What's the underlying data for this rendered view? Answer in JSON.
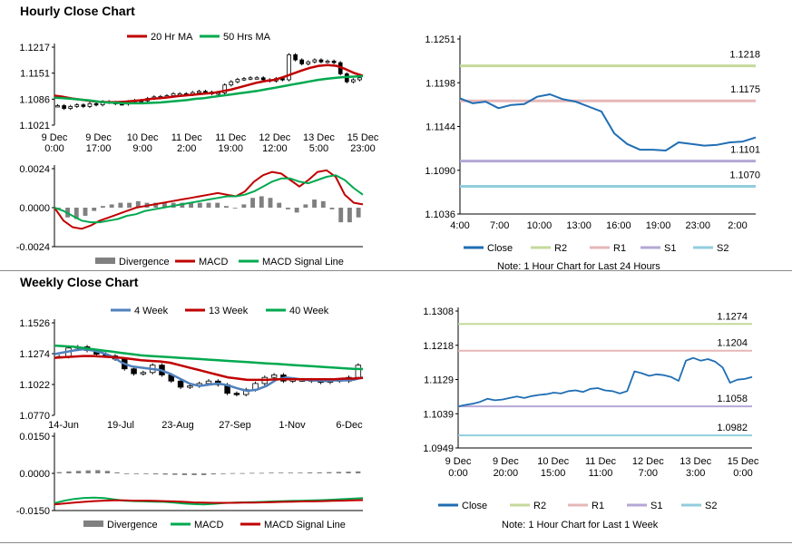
{
  "sections": {
    "hourly_title": "Hourly Close Chart",
    "weekly_title": "Weekly Close Chart"
  },
  "chart_data": [
    {
      "id": "hourly_price",
      "type": "candlestick",
      "legend": [
        "20 Hr MA",
        "50 Hrs MA"
      ],
      "colors": {
        "ma20": "#c00000",
        "ma50": "#00a94f"
      },
      "ylim": [
        1.1021,
        1.1217
      ],
      "yticks": [
        "1.1217",
        "1.1151",
        "1.1086",
        "1.1021"
      ],
      "xticks": [
        [
          "9 Dec",
          "0:00"
        ],
        [
          "9 Dec",
          "17:00"
        ],
        [
          "10 Dec",
          "9:00"
        ],
        [
          "11 Dec",
          "2:00"
        ],
        [
          "11 Dec",
          "19:00"
        ],
        [
          "12 Dec",
          "12:00"
        ],
        [
          "13 Dec",
          "5:00"
        ],
        [
          "15 Dec",
          "23:00"
        ]
      ],
      "close": [
        1.107,
        1.1063,
        1.1068,
        1.1072,
        1.1068,
        1.1075,
        1.1072,
        1.108,
        1.1078,
        1.1075,
        1.1074,
        1.108,
        1.1083,
        1.1082,
        1.1088,
        1.1092,
        1.1093,
        1.1095,
        1.11,
        1.11,
        1.1098,
        1.1103,
        1.1106,
        1.1104,
        1.11,
        1.1102,
        1.1122,
        1.113,
        1.1136,
        1.1138,
        1.114,
        1.114,
        1.1135,
        1.1132,
        1.1138,
        1.1135,
        1.1198,
        1.1185,
        1.1175,
        1.118,
        1.1185,
        1.118,
        1.1182,
        1.1178,
        1.115,
        1.113,
        1.1135,
        1.114
      ],
      "ma20": [
        1.1095,
        1.1092,
        1.1088,
        1.1085,
        1.1082,
        1.108,
        1.1079,
        1.1079,
        1.108,
        1.1082,
        1.1084,
        1.1087,
        1.1089,
        1.1091,
        1.1094,
        1.1096,
        1.1098,
        1.11,
        1.1102,
        1.1106,
        1.111,
        1.1116,
        1.1122,
        1.1128,
        1.1132,
        1.1135,
        1.1142,
        1.115,
        1.1158,
        1.1165,
        1.117,
        1.1172,
        1.117,
        1.1162,
        1.1152,
        1.1145
      ],
      "ma50": [
        1.109,
        1.1089,
        1.1087,
        1.1085,
        1.1083,
        1.108,
        1.1078,
        1.1077,
        1.1076,
        1.1076,
        1.1076,
        1.1077,
        1.1078,
        1.108,
        1.1082,
        1.1084,
        1.1087,
        1.1089,
        1.1092,
        1.1095,
        1.1098,
        1.1101,
        1.1104,
        1.1107,
        1.1111,
        1.1115,
        1.1119,
        1.1123,
        1.1127,
        1.1131,
        1.1135,
        1.1138,
        1.114,
        1.1142,
        1.1143,
        1.1144
      ]
    },
    {
      "id": "hourly_macd",
      "type": "line",
      "legend": [
        "Divergence",
        "MACD",
        "MACD Signal Line"
      ],
      "colors": {
        "div": "#808080",
        "macd": "#c00000",
        "signal": "#00a94f"
      },
      "ylim": [
        -0.0024,
        0.0024
      ],
      "yticks": [
        "0.0024",
        "0.0000",
        "-0.0024"
      ],
      "macd": [
        -0.0,
        -0.0008,
        -0.0012,
        -0.0013,
        -0.0011,
        -0.0008,
        -0.0006,
        -0.0004,
        -0.0002,
        0.0,
        0.0001,
        0.0002,
        0.0003,
        0.0004,
        0.0005,
        0.0006,
        0.0007,
        0.0008,
        0.0009,
        0.0008,
        0.0007,
        0.001,
        0.0016,
        0.002,
        0.0022,
        0.0021,
        0.0017,
        0.0013,
        0.0017,
        0.0022,
        0.0023,
        0.0019,
        0.0008,
        0.0003,
        0.0002
      ],
      "signal": [
        0.0,
        -0.0002,
        -0.0005,
        -0.0008,
        -0.0009,
        -0.0009,
        -0.0008,
        -0.0007,
        -0.0005,
        -0.0004,
        -0.0002,
        -0.0001,
        0.0,
        0.0001,
        0.0002,
        0.0003,
        0.0004,
        0.0005,
        0.0006,
        0.0007,
        0.0007,
        0.0008,
        0.001,
        0.0013,
        0.0016,
        0.0018,
        0.0018,
        0.0016,
        0.0015,
        0.0017,
        0.0019,
        0.002,
        0.0017,
        0.0012,
        0.0008
      ],
      "divergence": [
        -0.0,
        -0.0006,
        -0.0007,
        -0.0005,
        -0.0002,
        0.0001,
        0.0002,
        0.0003,
        0.0003,
        0.0004,
        0.0003,
        0.0003,
        0.0003,
        0.0003,
        0.0003,
        0.0003,
        0.0003,
        0.0003,
        0.0003,
        0.0001,
        0.0,
        0.0002,
        0.0006,
        0.0007,
        0.0006,
        0.0003,
        -0.0001,
        -0.0003,
        0.0002,
        0.0005,
        0.0004,
        -0.0001,
        -0.0009,
        -0.0009,
        -0.0006
      ]
    },
    {
      "id": "hourly_close",
      "type": "line",
      "legend": [
        "Close",
        "R2",
        "R1",
        "S1",
        "S2"
      ],
      "colors": {
        "close": "#1f6eb4",
        "r2": "#c5d99b",
        "r1": "#e6b7b7",
        "s1": "#b4a7d6",
        "s2": "#92cddc"
      },
      "ylim": [
        1.1036,
        1.1251
      ],
      "yticks": [
        "1.1251",
        "1.1198",
        "1.1144",
        "1.1090",
        "1.1036"
      ],
      "xticks": [
        "4:00",
        "7:00",
        "10:00",
        "13:00",
        "16:00",
        "19:00",
        "23:00",
        "2:00"
      ],
      "levels": {
        "R2": 1.1218,
        "R1": 1.1175,
        "S1": 1.1101,
        "S2": 1.107
      },
      "level_labels": {
        "R2": "1.1218",
        "R1": "1.1175",
        "S1": "1.1101",
        "S2": "1.1070"
      },
      "close": [
        1.1178,
        1.1172,
        1.1174,
        1.1166,
        1.117,
        1.1171,
        1.118,
        1.1183,
        1.1177,
        1.1174,
        1.1168,
        1.1162,
        1.1135,
        1.1122,
        1.1115,
        1.1115,
        1.1114,
        1.1124,
        1.1122,
        1.112,
        1.1121,
        1.1124,
        1.1125,
        1.113
      ],
      "note": "Note: 1 Hour Chart for Last 24 Hours"
    },
    {
      "id": "weekly_price",
      "type": "candlestick",
      "legend": [
        "4 Week",
        "13 Week",
        "40 Week"
      ],
      "colors": {
        "w4": "#4f81bd",
        "w13": "#c00000",
        "w40": "#00a94f"
      },
      "ylim": [
        1.077,
        1.1526
      ],
      "yticks": [
        "1.1526",
        "1.1274",
        "1.1022",
        "1.0770"
      ],
      "xticks": [
        "14-Jun",
        "19-Jul",
        "23-Aug",
        "27-Sep",
        "1-Nov",
        "6-Dec"
      ],
      "close": [
        1.125,
        1.132,
        1.133,
        1.13,
        1.127,
        1.1255,
        1.123,
        1.115,
        1.111,
        1.112,
        1.118,
        1.11,
        1.105,
        1.1,
        1.101,
        1.103,
        1.105,
        1.102,
        1.095,
        1.094,
        1.098,
        1.103,
        1.108,
        1.11,
        1.105,
        1.106,
        1.106,
        1.105,
        1.104,
        1.106,
        1.105,
        1.108,
        1.118
      ],
      "w4": [
        1.127,
        1.1285,
        1.13,
        1.131,
        1.13,
        1.128,
        1.125,
        1.12,
        1.117,
        1.116,
        1.115,
        1.114,
        1.111,
        1.107,
        1.103,
        1.101,
        1.102,
        1.103,
        1.1015,
        1.099,
        1.097,
        1.098,
        1.101,
        1.106,
        1.108,
        1.107,
        1.106,
        1.1055,
        1.105,
        1.1055,
        1.1055,
        1.106,
        1.108
      ],
      "w13": [
        1.124,
        1.1245,
        1.125,
        1.1255,
        1.1255,
        1.125,
        1.1245,
        1.124,
        1.123,
        1.122,
        1.1215,
        1.121,
        1.12,
        1.118,
        1.116,
        1.114,
        1.112,
        1.11,
        1.108,
        1.107,
        1.106,
        1.106,
        1.106,
        1.1065,
        1.1065,
        1.1065,
        1.1065,
        1.1065,
        1.1065,
        1.1065,
        1.107,
        1.107,
        1.1075
      ],
      "w40": [
        1.134,
        1.1335,
        1.133,
        1.132,
        1.131,
        1.13,
        1.129,
        1.128,
        1.127,
        1.126,
        1.1255,
        1.125,
        1.1245,
        1.124,
        1.1235,
        1.123,
        1.1225,
        1.122,
        1.1215,
        1.121,
        1.1205,
        1.12,
        1.1195,
        1.119,
        1.1185,
        1.118,
        1.1175,
        1.117,
        1.1165,
        1.116,
        1.1155,
        1.115,
        1.1148
      ]
    },
    {
      "id": "weekly_macd",
      "type": "line",
      "legend": [
        "Divergence",
        "MACD",
        "MACD Signal Line"
      ],
      "colors": {
        "div": "#808080",
        "macd": "#00a94f",
        "signal": "#c00000"
      },
      "ylim": [
        -0.015,
        0.015
      ],
      "yticks": [
        "0.0150",
        "0.0000",
        "-0.0150"
      ],
      "macd": [
        -0.012,
        -0.011,
        -0.0103,
        -0.0099,
        -0.0098,
        -0.01,
        -0.0105,
        -0.011,
        -0.0112,
        -0.0113,
        -0.0114,
        -0.0115,
        -0.0118,
        -0.0122,
        -0.0124,
        -0.0125,
        -0.0123,
        -0.012,
        -0.0118,
        -0.0117,
        -0.0116,
        -0.0115,
        -0.0113,
        -0.0112,
        -0.0111,
        -0.011,
        -0.0109,
        -0.0108,
        -0.0106,
        -0.0104,
        -0.0102,
        -0.01
      ],
      "signal": [
        -0.0125,
        -0.0122,
        -0.0118,
        -0.0115,
        -0.0112,
        -0.011,
        -0.0109,
        -0.0109,
        -0.011,
        -0.011,
        -0.0111,
        -0.0112,
        -0.0113,
        -0.0115,
        -0.0117,
        -0.0118,
        -0.0119,
        -0.0119,
        -0.0119,
        -0.0118,
        -0.0118,
        -0.0117,
        -0.0116,
        -0.0115,
        -0.0114,
        -0.0113,
        -0.0113,
        -0.0112,
        -0.0111,
        -0.011,
        -0.0109,
        -0.0108
      ],
      "divergence": [
        0.0005,
        0.0008,
        0.001,
        0.0012,
        0.0013,
        0.001,
        0.0004,
        -0.0001,
        -0.0002,
        -0.0003,
        -0.0004,
        -0.0005,
        -0.0006,
        -0.0007,
        -0.0007,
        -0.0007,
        -0.0004,
        -0.0001,
        0.0001,
        0.0001,
        0.0002,
        0.0002,
        0.0003,
        0.0003,
        0.0003,
        0.0003,
        0.0004,
        0.0004,
        0.0005,
        0.0006,
        0.0007,
        0.0008
      ]
    },
    {
      "id": "weekly_close",
      "type": "line",
      "legend": [
        "Close",
        "R2",
        "R1",
        "S1",
        "S2"
      ],
      "colors": {
        "close": "#1f6eb4",
        "r2": "#c5d99b",
        "r1": "#e6b7b7",
        "s1": "#b4a7d6",
        "s2": "#92cddc"
      },
      "ylim": [
        1.0949,
        1.1308
      ],
      "yticks": [
        "1.1308",
        "1.1218",
        "1.1129",
        "1.1039",
        "1.0949"
      ],
      "xticks": [
        [
          "9 Dec",
          "0:00"
        ],
        [
          "9 Dec",
          "20:00"
        ],
        [
          "10 Dec",
          "15:00"
        ],
        [
          "11 Dec",
          "11:00"
        ],
        [
          "12 Dec",
          "7:00"
        ],
        [
          "13 Dec",
          "3:00"
        ],
        [
          "15 Dec",
          "0:00"
        ]
      ],
      "levels": {
        "R2": 1.1274,
        "R1": 1.1204,
        "S1": 1.1058,
        "S2": 1.0982
      },
      "level_labels": {
        "R2": "1.1274",
        "R1": "1.1204",
        "S1": "1.1058",
        "S2": "1.0982"
      },
      "close": [
        1.1058,
        1.1062,
        1.1065,
        1.107,
        1.1078,
        1.1074,
        1.1076,
        1.108,
        1.1084,
        1.108,
        1.1085,
        1.1088,
        1.109,
        1.1094,
        1.1092,
        1.1098,
        1.11,
        1.1096,
        1.1104,
        1.1106,
        1.11,
        1.1098,
        1.1092,
        1.1098,
        1.115,
        1.1145,
        1.1138,
        1.1142,
        1.114,
        1.1135,
        1.1125,
        1.1178,
        1.1185,
        1.1178,
        1.1182,
        1.1175,
        1.116,
        1.112,
        1.1128,
        1.113,
        1.1135
      ],
      "note": "Note: 1 Hour Chart for Last 1 Week"
    }
  ]
}
